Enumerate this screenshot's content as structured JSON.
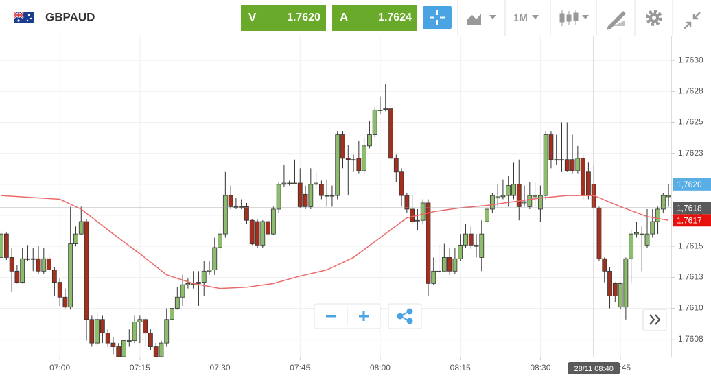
{
  "toolbar": {
    "symbol": "GBPAUD",
    "bid": {
      "label": "V",
      "price": "1.7620"
    },
    "ask": {
      "label": "A",
      "price": "1.7624"
    },
    "timeframe": "1M"
  },
  "chart_data": {
    "type": "candlestick",
    "grid": true,
    "up_color": "#8dbd6c",
    "down_color": "#a3301f",
    "xlim": [
      408.8,
      534.5
    ],
    "ylim": [
      1.76061,
      1.7632
    ],
    "xticks": [
      {
        "value": 420,
        "label": "07:00"
      },
      {
        "value": 435,
        "label": "07:15"
      },
      {
        "value": 450,
        "label": "07:30"
      },
      {
        "value": 465,
        "label": "07:45"
      },
      {
        "value": 480,
        "label": "08:00"
      },
      {
        "value": 495,
        "label": "08:15"
      },
      {
        "value": 510,
        "label": "08:30"
      },
      {
        "value": 525,
        "label": "08:45"
      }
    ],
    "yticks": [
      {
        "value": 1.76075,
        "label": "1,7608"
      },
      {
        "value": 1.761,
        "label": "1,7610"
      },
      {
        "value": 1.76125,
        "label": "1,7613"
      },
      {
        "value": 1.7615,
        "label": "1,7615"
      },
      {
        "value": 1.76175,
        "label": "1,7618"
      },
      {
        "value": 1.762,
        "label": "1,7620"
      },
      {
        "value": 1.76225,
        "label": "1,7623"
      },
      {
        "value": 1.7625,
        "label": "1,7625"
      },
      {
        "value": 1.76275,
        "label": "1,7628"
      },
      {
        "value": 1.763,
        "label": "1,7630"
      }
    ],
    "x": [
      409,
      410,
      411,
      412,
      413,
      414,
      415,
      416,
      417,
      418,
      419,
      420,
      421,
      422,
      423,
      424,
      425,
      426,
      427,
      428,
      429,
      430,
      431,
      432,
      433,
      434,
      435,
      436,
      437,
      438,
      439,
      440,
      441,
      442,
      443,
      444,
      445,
      446,
      447,
      448,
      449,
      450,
      451,
      452,
      453,
      454,
      455,
      456,
      457,
      458,
      459,
      460,
      461,
      462,
      463,
      464,
      465,
      466,
      467,
      468,
      469,
      470,
      471,
      472,
      473,
      474,
      475,
      476,
      477,
      478,
      479,
      480,
      481,
      482,
      483,
      484,
      485,
      486,
      487,
      488,
      489,
      490,
      491,
      492,
      493,
      494,
      495,
      496,
      497,
      498,
      499,
      500,
      501,
      502,
      503,
      504,
      505,
      506,
      507,
      508,
      509,
      510,
      511,
      512,
      513,
      514,
      515,
      516,
      517,
      518,
      519,
      520,
      521,
      522,
      523,
      524,
      525,
      526,
      527,
      528,
      529,
      530,
      531,
      532,
      533,
      534
    ],
    "open": [
      1.76141,
      1.7616,
      1.76141,
      1.7613,
      1.76121,
      1.7614,
      1.7614,
      1.7614,
      1.7613,
      1.7614,
      1.76131,
      1.76121,
      1.76109,
      1.76101,
      1.76152,
      1.7616,
      1.7617,
      1.76091,
      1.76072,
      1.76091,
      1.7608,
      1.76072,
      1.76069,
      1.76061,
      1.76074,
      1.76074,
      1.76089,
      1.76091,
      1.7608,
      1.76069,
      1.76061,
      1.76072,
      1.76091,
      1.761,
      1.76109,
      1.76119,
      1.7612,
      1.7612,
      1.76121,
      1.7613,
      1.76131,
      1.76149,
      1.7616,
      1.76191,
      1.76182,
      1.76182,
      1.76182,
      1.76171,
      1.7617,
      1.76151,
      1.7617,
      1.7616,
      1.7618,
      1.762,
      1.76201,
      1.76201,
      1.76201,
      1.76192,
      1.76182,
      1.762,
      1.762,
      1.76191,
      1.76191,
      1.76191,
      1.7624,
      1.76221,
      1.7622,
      1.76221,
      1.76211,
      1.76231,
      1.7624,
      1.7626,
      1.76261,
      1.76261,
      1.76221,
      1.7621,
      1.76191,
      1.7618,
      1.76171,
      1.76171,
      1.76185,
      1.7612,
      1.7613,
      1.7613,
      1.76141,
      1.7613,
      1.7614,
      1.76151,
      1.7616,
      1.7615,
      1.76141,
      1.7617,
      1.7618,
      1.76189,
      1.7619,
      1.76191,
      1.76191,
      1.762,
      1.76185,
      1.76182,
      1.7619,
      1.7618,
      1.76191,
      1.7624,
      1.7622,
      1.7622,
      1.7622,
      1.7622,
      1.76211,
      1.76221,
      1.7621,
      1.762,
      1.76181,
      1.7614,
      1.7613,
      1.7612,
      1.76101,
      1.76101,
      1.7614,
      1.7616,
      1.7616,
      1.76151,
      1.7616,
      1.7617,
      1.7618,
      1.7619
    ],
    "high": [
      1.76163,
      1.76161,
      1.76149,
      1.76135,
      1.76149,
      1.76151,
      1.76149,
      1.7615,
      1.76149,
      1.76144,
      1.76133,
      1.76124,
      1.76116,
      1.76182,
      1.76166,
      1.76182,
      1.76172,
      1.76094,
      1.76097,
      1.76094,
      1.76083,
      1.76077,
      1.76072,
      1.76088,
      1.76083,
      1.76094,
      1.76094,
      1.76093,
      1.76083,
      1.76072,
      1.76074,
      1.761,
      1.7611,
      1.76117,
      1.76127,
      1.76124,
      1.7613,
      1.7613,
      1.76138,
      1.76138,
      1.76157,
      1.76166,
      1.7621,
      1.76199,
      1.76189,
      1.76188,
      1.76185,
      1.76172,
      1.76172,
      1.76171,
      1.76172,
      1.76182,
      1.76202,
      1.76216,
      1.76203,
      1.7622,
      1.76213,
      1.76199,
      1.76213,
      1.7621,
      1.76203,
      1.76204,
      1.76199,
      1.76243,
      1.76243,
      1.76232,
      1.76224,
      1.76235,
      1.76238,
      1.76251,
      1.76262,
      1.76271,
      1.76281,
      1.76262,
      1.76224,
      1.76213,
      1.76193,
      1.76191,
      1.7618,
      1.76188,
      1.76188,
      1.76141,
      1.76152,
      1.76152,
      1.76149,
      1.76149,
      1.7616,
      1.76168,
      1.76166,
      1.7616,
      1.76171,
      1.76182,
      1.76193,
      1.762,
      1.76204,
      1.76207,
      1.76218,
      1.7622,
      1.76199,
      1.76202,
      1.76202,
      1.76199,
      1.76243,
      1.76243,
      1.7624,
      1.7625,
      1.7625,
      1.7624,
      1.76231,
      1.76224,
      1.76218,
      1.76216,
      1.76182,
      1.76141,
      1.76133,
      1.76121,
      1.76121,
      1.76141,
      1.76163,
      1.7617,
      1.76166,
      1.7618,
      1.7618,
      1.76182,
      1.76193,
      1.762
    ],
    "low": [
      1.76139,
      1.76139,
      1.76113,
      1.7612,
      1.7612,
      1.76138,
      1.7613,
      1.76128,
      1.76128,
      1.76129,
      1.7611,
      1.76102,
      1.761,
      1.76099,
      1.7615,
      1.76159,
      1.76074,
      1.76069,
      1.76069,
      1.76072,
      1.76069,
      1.76063,
      1.76061,
      1.76061,
      1.76069,
      1.76072,
      1.76072,
      1.76069,
      1.76066,
      1.76061,
      1.76061,
      1.76069,
      1.76088,
      1.76099,
      1.76102,
      1.76116,
      1.76116,
      1.76102,
      1.7611,
      1.76127,
      1.76127,
      1.76146,
      1.76157,
      1.7618,
      1.7618,
      1.7618,
      1.76168,
      1.76151,
      1.76149,
      1.76149,
      1.76157,
      1.76159,
      1.76177,
      1.76198,
      1.76199,
      1.762,
      1.76181,
      1.7618,
      1.7618,
      1.76196,
      1.76188,
      1.76182,
      1.76182,
      1.76188,
      1.76213,
      1.76191,
      1.7621,
      1.76209,
      1.76209,
      1.76229,
      1.76238,
      1.76257,
      1.76259,
      1.76218,
      1.76202,
      1.76182,
      1.76177,
      1.76168,
      1.76163,
      1.76168,
      1.7611,
      1.76119,
      1.76128,
      1.7613,
      1.76127,
      1.76128,
      1.76138,
      1.76149,
      1.76148,
      1.76141,
      1.7613,
      1.76168,
      1.76177,
      1.76182,
      1.76188,
      1.76182,
      1.76188,
      1.76171,
      1.76182,
      1.7618,
      1.76182,
      1.7617,
      1.76188,
      1.76213,
      1.76216,
      1.7621,
      1.7621,
      1.76209,
      1.76209,
      1.76188,
      1.76188,
      1.7618,
      1.76138,
      1.76121,
      1.761,
      1.76105,
      1.76099,
      1.76091,
      1.7612,
      1.76157,
      1.7613,
      1.76149,
      1.76157,
      1.7616,
      1.76177,
      1.76182
    ],
    "close": [
      1.7616,
      1.76141,
      1.7613,
      1.76121,
      1.7614,
      1.7614,
      1.7614,
      1.7613,
      1.7614,
      1.76131,
      1.76121,
      1.76109,
      1.76101,
      1.76152,
      1.7616,
      1.7617,
      1.76091,
      1.76072,
      1.76091,
      1.7608,
      1.76072,
      1.76069,
      1.76061,
      1.76074,
      1.76074,
      1.76089,
      1.76091,
      1.7608,
      1.76069,
      1.76061,
      1.76072,
      1.76091,
      1.761,
      1.76109,
      1.76119,
      1.7612,
      1.7612,
      1.76121,
      1.7613,
      1.76131,
      1.76149,
      1.7616,
      1.76191,
      1.76182,
      1.76182,
      1.76182,
      1.76171,
      1.76152,
      1.76151,
      1.7617,
      1.7616,
      1.7618,
      1.762,
      1.76201,
      1.76201,
      1.76201,
      1.76182,
      1.76182,
      1.762,
      1.76201,
      1.76191,
      1.76191,
      1.76191,
      1.7624,
      1.76221,
      1.7622,
      1.7622,
      1.76211,
      1.76231,
      1.7624,
      1.7626,
      1.7626,
      1.76261,
      1.76221,
      1.7621,
      1.76191,
      1.7618,
      1.7617,
      1.76171,
      1.76185,
      1.7612,
      1.7613,
      1.7613,
      1.76141,
      1.7613,
      1.7614,
      1.76151,
      1.7616,
      1.76151,
      1.76151,
      1.7616,
      1.7618,
      1.76191,
      1.7619,
      1.76191,
      1.76199,
      1.762,
      1.76182,
      1.76186,
      1.76191,
      1.76191,
      1.76191,
      1.7624,
      1.7622,
      1.7622,
      1.7622,
      1.76211,
      1.76211,
      1.76221,
      1.76191,
      1.76191,
      1.76181,
      1.7614,
      1.7613,
      1.7611,
      1.7611,
      1.7612,
      1.7614,
      1.7616,
      1.76161,
      1.7616,
      1.7616,
      1.7617,
      1.7618,
      1.76191,
      1.76191
    ],
    "line": {
      "color": "#ec6a6a",
      "x": [
        409,
        420,
        424,
        430,
        435,
        440,
        445,
        450,
        455,
        460,
        465,
        470,
        475,
        480,
        485,
        490,
        495,
        500,
        505,
        510,
        515,
        520,
        525,
        530,
        534
      ],
      "values": [
        1.76191,
        1.76188,
        1.7618,
        1.7616,
        1.76144,
        1.76127,
        1.7612,
        1.76116,
        1.76117,
        1.7612,
        1.76126,
        1.76131,
        1.76141,
        1.76157,
        1.76173,
        1.76178,
        1.76181,
        1.76183,
        1.76186,
        1.76189,
        1.76191,
        1.76191,
        1.76182,
        1.76174,
        1.76171
      ]
    },
    "markers": [
      {
        "value": 1.762,
        "label": "1,7620",
        "color": "#5aaee6"
      },
      {
        "value": 1.76171,
        "label": "1,7617",
        "color": "#e8100c"
      }
    ],
    "crosshair": {
      "x": {
        "value": 520,
        "label": "28/11 08:40"
      },
      "y": {
        "value": 1.76181,
        "label": "1,7618"
      },
      "color": "#5a5a5a"
    }
  }
}
